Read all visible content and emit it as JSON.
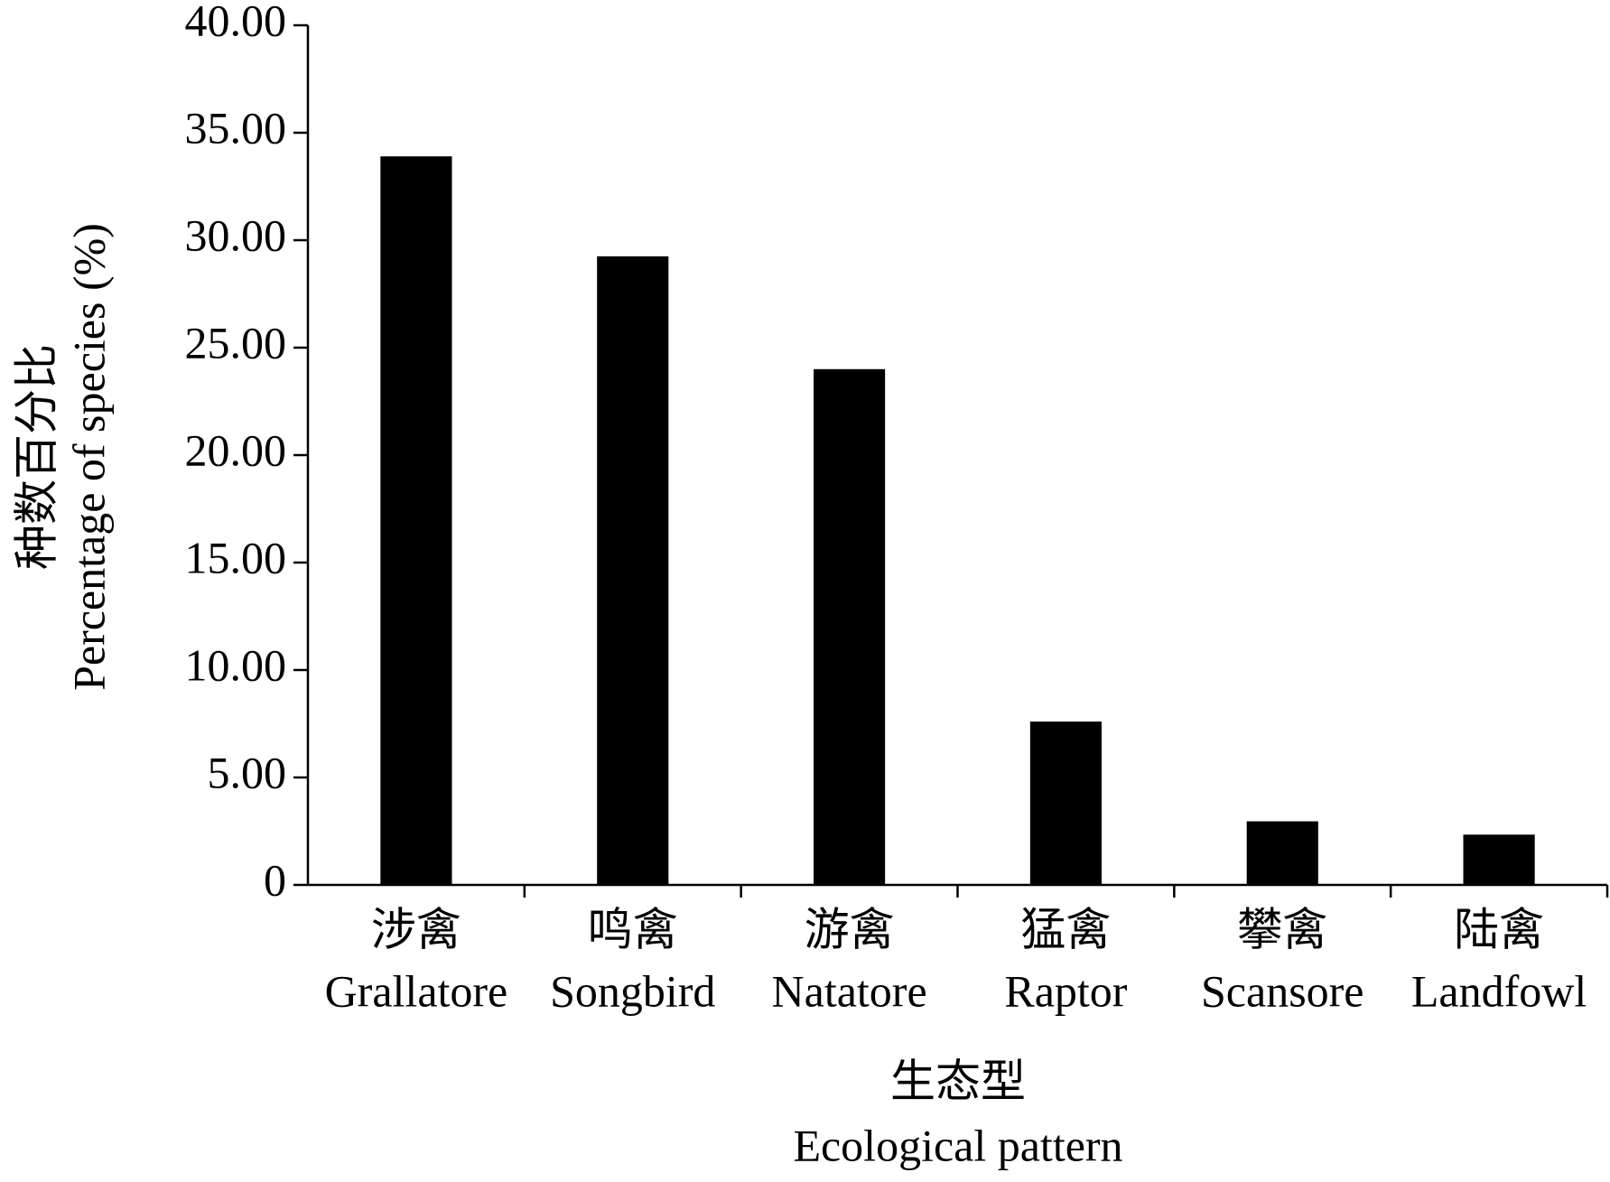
{
  "chart_data": {
    "type": "bar",
    "categories": [
      "涉禽",
      "鸣禽",
      "游禽",
      "猛禽",
      "攀禽",
      "陆禽"
    ],
    "categories_en": [
      "Grallatore",
      "Songbird",
      "Natatore",
      "Raptor",
      "Scansore",
      "Landfowl"
    ],
    "values": [
      33.9,
      29.25,
      24.0,
      7.6,
      2.96,
      2.34
    ],
    "color": "#000000",
    "y_label": [
      "种数百分比",
      "Percentage of species (%)"
    ],
    "x_label": [
      "生态型",
      "Ecological pattern"
    ],
    "ylim": [
      0,
      40
    ],
    "yticks": [
      0,
      {
        "value": 5,
        "label": "5.00"
      },
      {
        "value": 10,
        "label": "10.00"
      },
      {
        "value": 15,
        "label": "15.00"
      },
      {
        "value": 20,
        "label": "20.00"
      },
      {
        "value": 25,
        "label": "25.00"
      },
      {
        "value": 30,
        "label": "30.00"
      },
      {
        "value": 35,
        "label": "35.00"
      },
      {
        "value": 40,
        "label": "40.00"
      }
    ],
    "grid": false
  }
}
